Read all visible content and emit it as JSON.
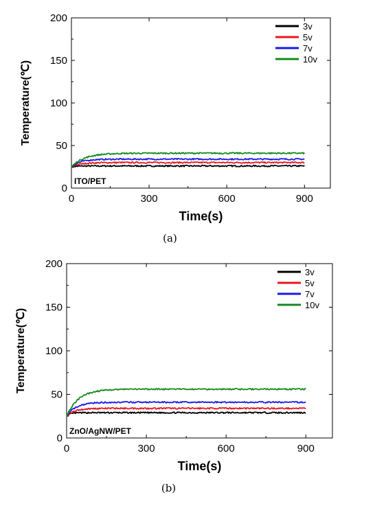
{
  "chart_data": [
    {
      "type": "line",
      "panel_label": "ITO/PET",
      "caption": "(a)",
      "xlabel": "Time(s)",
      "ylabel": "Temperature(℃)",
      "xlim": [
        0,
        1000
      ],
      "ylim": [
        0,
        200
      ],
      "x_ticks": [
        0,
        300,
        600,
        900
      ],
      "y_ticks": [
        0,
        50,
        100,
        150,
        200
      ],
      "legend_position": "top-right",
      "series": [
        {
          "name": "3v",
          "color": "#000000",
          "start": 25,
          "steady": 26,
          "tau": 20,
          "end_time": 900
        },
        {
          "name": "5v",
          "color": "#e8161d",
          "start": 25,
          "steady": 30,
          "tau": 35,
          "end_time": 900
        },
        {
          "name": "7v",
          "color": "#1a1ae6",
          "start": 25,
          "steady": 34,
          "tau": 35,
          "end_time": 900
        },
        {
          "name": "10v",
          "color": "#158a1d",
          "start": 25,
          "steady": 41,
          "tau": 50,
          "end_time": 900
        }
      ]
    },
    {
      "type": "line",
      "panel_label": "ZnO/AgNW/PET",
      "caption": "(b)",
      "xlabel": "Time(s)",
      "ylabel": "Temperature(℃)",
      "xlim": [
        0,
        1000
      ],
      "ylim": [
        0,
        200
      ],
      "x_ticks": [
        0,
        300,
        600,
        900
      ],
      "y_ticks": [
        0,
        50,
        100,
        150,
        200
      ],
      "legend_position": "top-right",
      "series": [
        {
          "name": "3v",
          "color": "#000000",
          "start": 25,
          "steady": 29,
          "tau": 15,
          "end_time": 900
        },
        {
          "name": "5v",
          "color": "#e8161d",
          "start": 25,
          "steady": 34,
          "tau": 30,
          "end_time": 900
        },
        {
          "name": "7v",
          "color": "#1a1ae6",
          "start": 25,
          "steady": 41,
          "tau": 35,
          "end_time": 900
        },
        {
          "name": "10v",
          "color": "#158a1d",
          "start": 25,
          "steady": 56,
          "tau": 45,
          "end_time": 900
        }
      ]
    }
  ]
}
